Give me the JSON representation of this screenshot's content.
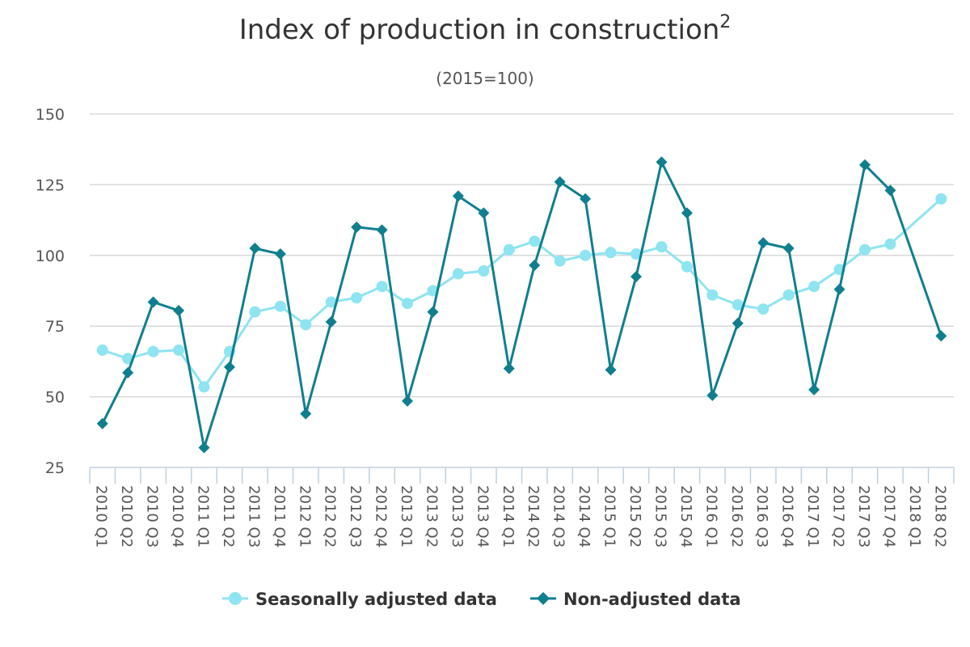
{
  "chart_data": {
    "type": "line",
    "title": "Index of production in construction",
    "title_superscript": "2",
    "subtitle": "(2015=100)",
    "xlabel": "",
    "ylabel": "",
    "ylim": [
      25,
      150
    ],
    "yticks": [
      25,
      50,
      75,
      100,
      125,
      150
    ],
    "grid": true,
    "legend_position": "bottom-center",
    "categories": [
      "2010 Q1",
      "2010 Q2",
      "2010 Q3",
      "2010 Q4",
      "2011 Q1",
      "2011 Q2",
      "2011 Q3",
      "2011 Q4",
      "2012 Q1",
      "2012 Q2",
      "2012 Q3",
      "2012 Q4",
      "2013 Q1",
      "2013 Q2",
      "2013 Q3",
      "2013 Q4",
      "2014 Q1",
      "2014 Q2",
      "2014 Q3",
      "2014 Q4",
      "2015 Q1",
      "2015 Q2",
      "2015 Q3",
      "2015 Q4",
      "2016 Q1",
      "2016 Q2",
      "2016 Q3",
      "2016 Q4",
      "2017 Q1",
      "2017 Q2",
      "2017 Q3",
      "2017 Q4",
      "2018 Q1",
      "2018 Q2"
    ],
    "series": [
      {
        "name": "Seasonally adjusted data",
        "color": "#8ee4f0",
        "marker": "circle",
        "values": [
          66.5,
          63.5,
          66,
          66.5,
          53.5,
          66,
          80,
          82,
          75.5,
          83.5,
          85,
          89,
          83,
          87.5,
          93.5,
          94.5,
          102,
          105,
          98,
          100,
          101,
          100.5,
          103,
          96,
          86,
          82.5,
          81,
          86,
          89,
          95,
          102,
          104,
          null,
          120
        ]
      },
      {
        "name": "Non-adjusted data",
        "color": "#0f7f8f",
        "marker": "diamond",
        "values": [
          40.5,
          58.5,
          83.5,
          80.5,
          32,
          60.5,
          102.5,
          100.5,
          44,
          76.5,
          110,
          109,
          48.5,
          80,
          121,
          115,
          60,
          96.5,
          126,
          120,
          59.5,
          92.5,
          133,
          115,
          50.5,
          76,
          104.5,
          102.5,
          52.5,
          88,
          132,
          123,
          null,
          71.5
        ]
      }
    ]
  }
}
